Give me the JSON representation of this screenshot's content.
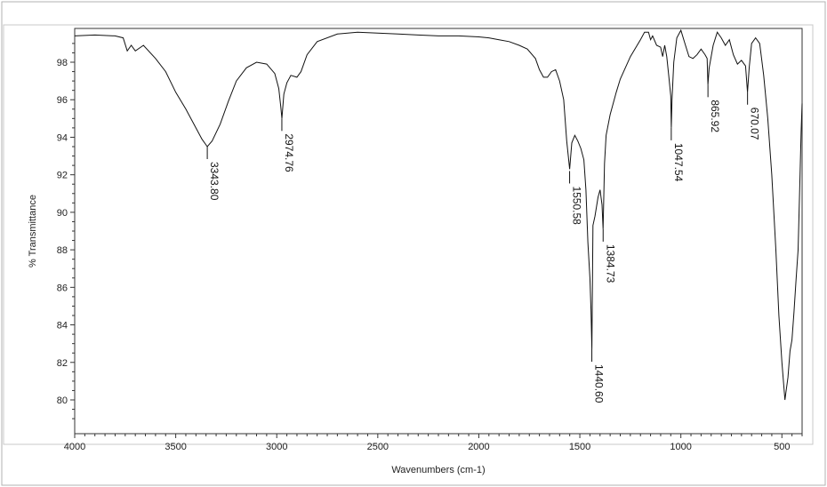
{
  "chart_data": {
    "type": "line",
    "xlabel": "Wavenumbers (cm-1)",
    "ylabel": "% Transmittance",
    "xlim": [
      4000,
      400
    ],
    "ylim": [
      78.2,
      99.8
    ],
    "x_reversed": true,
    "grid": false,
    "x_ticks": [
      4000,
      3500,
      3000,
      2500,
      2000,
      1500,
      1000,
      500
    ],
    "x_tick_labels": [
      "4000",
      "3500",
      "3000",
      "2500",
      "2000",
      "1500",
      "1000",
      "500"
    ],
    "y_ticks": [
      80,
      82,
      84,
      86,
      88,
      90,
      92,
      94,
      96,
      98
    ],
    "y_tick_labels": [
      "80",
      "82",
      "84",
      "86",
      "88",
      "90",
      "92",
      "94",
      "96",
      "98"
    ],
    "peak_labels": [
      {
        "x": 3343.8,
        "y": 93.5,
        "label": "3343.80"
      },
      {
        "x": 2974.76,
        "y": 95.0,
        "label": "2974.76"
      },
      {
        "x": 1550.58,
        "y": 92.2,
        "label": "1550.58"
      },
      {
        "x": 1440.6,
        "y": 82.7,
        "label": "1440.60"
      },
      {
        "x": 1384.73,
        "y": 89.1,
        "label": "1384.73"
      },
      {
        "x": 1047.54,
        "y": 94.5,
        "label": "1047.54"
      },
      {
        "x": 865.92,
        "y": 96.8,
        "label": "865.92"
      },
      {
        "x": 670.07,
        "y": 96.4,
        "label": "670.07"
      }
    ],
    "series": [
      {
        "x": [
          4000,
          3900,
          3800,
          3760,
          3740,
          3720,
          3700,
          3660,
          3600,
          3550,
          3500,
          3450,
          3400,
          3370,
          3343.8,
          3320,
          3280,
          3240,
          3200,
          3150,
          3100,
          3050,
          3010,
          2990,
          2980,
          2974.76,
          2965,
          2950,
          2930,
          2900,
          2880,
          2850,
          2800,
          2700,
          2600,
          2500,
          2400,
          2300,
          2200,
          2100,
          2000,
          1950,
          1900,
          1850,
          1800,
          1760,
          1720,
          1700,
          1680,
          1660,
          1640,
          1620,
          1600,
          1580,
          1565,
          1550.58,
          1540,
          1525,
          1510,
          1495,
          1480,
          1470,
          1460,
          1450,
          1445,
          1440.6,
          1435,
          1425,
          1410,
          1400,
          1390,
          1384.73,
          1378,
          1370,
          1350,
          1320,
          1300,
          1250,
          1200,
          1180,
          1160,
          1150,
          1140,
          1120,
          1100,
          1090,
          1080,
          1070,
          1060,
          1050,
          1047.54,
          1044,
          1035,
          1020,
          1000,
          980,
          960,
          940,
          920,
          900,
          880,
          870,
          865.92,
          860,
          840,
          820,
          800,
          780,
          760,
          740,
          720,
          700,
          680,
          670.07,
          662,
          650,
          630,
          610,
          590,
          570,
          550,
          530,
          515,
          500,
          490,
          485,
          480,
          470,
          460,
          450,
          440,
          430,
          420,
          410,
          405,
          400
        ],
        "y": [
          99.4,
          99.45,
          99.4,
          99.3,
          98.6,
          98.9,
          98.6,
          98.9,
          98.2,
          97.5,
          96.4,
          95.5,
          94.5,
          93.9,
          93.5,
          93.8,
          94.7,
          95.9,
          97.0,
          97.7,
          98.0,
          97.9,
          97.4,
          96.6,
          95.6,
          95.0,
          96.3,
          96.9,
          97.3,
          97.2,
          97.5,
          98.4,
          99.1,
          99.5,
          99.6,
          99.55,
          99.5,
          99.45,
          99.4,
          99.4,
          99.35,
          99.3,
          99.2,
          99.1,
          98.9,
          98.7,
          98.2,
          97.6,
          97.2,
          97.2,
          97.5,
          97.6,
          97.0,
          96.0,
          93.8,
          92.3,
          93.7,
          94.1,
          93.8,
          93.4,
          92.8,
          91.2,
          88.4,
          86.5,
          84.8,
          82.7,
          89.3,
          89.8,
          90.8,
          91.2,
          90.4,
          89.1,
          92.6,
          94.1,
          95.2,
          96.4,
          97.1,
          98.3,
          99.2,
          99.6,
          99.6,
          99.2,
          99.4,
          98.9,
          98.8,
          98.3,
          98.9,
          98.3,
          97.3,
          96.2,
          94.5,
          96.0,
          98.0,
          99.3,
          99.7,
          99.0,
          98.3,
          98.2,
          98.4,
          98.7,
          98.4,
          98.2,
          96.8,
          97.7,
          98.9,
          99.6,
          99.3,
          98.9,
          99.2,
          98.4,
          97.9,
          98.1,
          97.8,
          96.4,
          97.7,
          99.0,
          99.3,
          99.0,
          97.3,
          95.0,
          92.0,
          88.0,
          84.5,
          82.0,
          80.7,
          80.0,
          80.4,
          81.2,
          82.6,
          83.2,
          84.7,
          86.4,
          88.0,
          92.0,
          94.3,
          95.8
        ]
      }
    ]
  }
}
